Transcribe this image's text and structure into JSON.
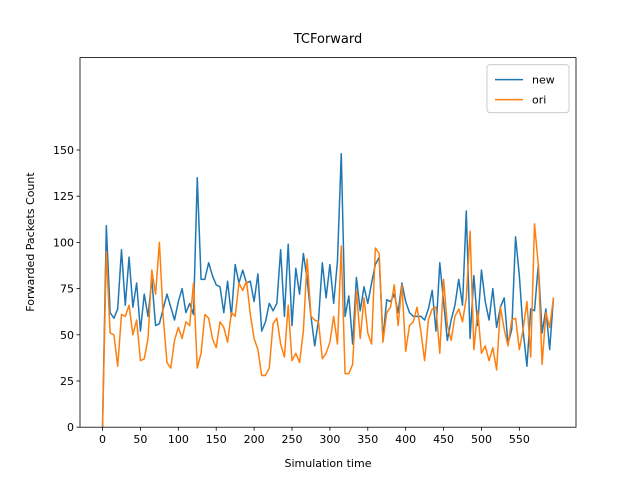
{
  "chart_data": {
    "type": "line",
    "title": "TCForward",
    "x_label": "Simulation time",
    "y_label": "Forwarded Packets Count",
    "x": [
      0,
      5,
      10,
      15,
      20,
      25,
      30,
      35,
      40,
      45,
      50,
      55,
      60,
      65,
      70,
      75,
      80,
      85,
      90,
      95,
      100,
      105,
      110,
      115,
      120,
      125,
      130,
      135,
      140,
      145,
      150,
      155,
      160,
      165,
      170,
      175,
      180,
      185,
      190,
      195,
      200,
      205,
      210,
      215,
      220,
      225,
      230,
      235,
      240,
      245,
      250,
      255,
      260,
      265,
      270,
      275,
      280,
      285,
      290,
      295,
      300,
      305,
      310,
      315,
      320,
      325,
      330,
      335,
      340,
      345,
      350,
      355,
      360,
      365,
      370,
      375,
      380,
      385,
      390,
      395,
      400,
      405,
      410,
      415,
      420,
      425,
      430,
      435,
      440,
      445,
      450,
      455,
      460,
      465,
      470,
      475,
      480,
      485,
      490,
      495,
      500,
      505,
      510,
      515,
      520,
      525,
      530,
      535,
      540,
      545,
      550,
      555,
      560,
      565,
      570,
      575,
      580,
      585,
      590,
      595
    ],
    "series": [
      {
        "name": "new",
        "color": "#1f77b4",
        "values": [
          0,
          109,
          62,
          59,
          64,
          96,
          66,
          92,
          65,
          78,
          52,
          72,
          60,
          80,
          55,
          56,
          64,
          72,
          65,
          58,
          68,
          75,
          62,
          67,
          61,
          135,
          80,
          80,
          89,
          82,
          77,
          76,
          62,
          79,
          60,
          88,
          78,
          85,
          78,
          79,
          68,
          83,
          52,
          57,
          67,
          63,
          67,
          96,
          60,
          99,
          55,
          86,
          72,
          94,
          80,
          60,
          44,
          58,
          89,
          70,
          88,
          67,
          90,
          148,
          60,
          71,
          45,
          81,
          63,
          76,
          67,
          78,
          88,
          92,
          48,
          69,
          68,
          72,
          62,
          78,
          68,
          62,
          60,
          60,
          60,
          58,
          64,
          74,
          52,
          89,
          68,
          47,
          58,
          66,
          80,
          66,
          117,
          48,
          82,
          55,
          85,
          68,
          58,
          75,
          54,
          65,
          70,
          45,
          53,
          103,
          82,
          52,
          33,
          64,
          63,
          88,
          51,
          64,
          42,
          70
        ]
      },
      {
        "name": "ori",
        "color": "#ff7f0e",
        "values": [
          0,
          95,
          51,
          50,
          33,
          61,
          60,
          66,
          50,
          58,
          36,
          37,
          48,
          85,
          72,
          100,
          60,
          35,
          32,
          47,
          54,
          48,
          57,
          55,
          78,
          32,
          40,
          61,
          59,
          48,
          43,
          57,
          54,
          46,
          62,
          60,
          78,
          74,
          79,
          61,
          48,
          42,
          28,
          28,
          32,
          56,
          59,
          45,
          38,
          66,
          36,
          40,
          35,
          52,
          91,
          60,
          58,
          57,
          37,
          40,
          46,
          60,
          45,
          98,
          29,
          29,
          34,
          74,
          48,
          70,
          51,
          45,
          97,
          94,
          46,
          62,
          65,
          77,
          55,
          77,
          41,
          55,
          57,
          65,
          52,
          36,
          58,
          64,
          65,
          40,
          80,
          55,
          47,
          60,
          64,
          57,
          70,
          106,
          42,
          63,
          40,
          44,
          36,
          43,
          31,
          65,
          53,
          44,
          58,
          59,
          42,
          53,
          68,
          38,
          110,
          88,
          34,
          62,
          54,
          70
        ]
      }
    ],
    "xlim": [
      -29.75,
      624.75
    ],
    "ylim": [
      0,
      200
    ],
    "xticks": [
      0,
      50,
      100,
      150,
      200,
      250,
      300,
      350,
      400,
      450,
      500,
      550
    ],
    "yticks": [
      0,
      25,
      50,
      75,
      100,
      125,
      150
    ],
    "legend": "upper right"
  }
}
